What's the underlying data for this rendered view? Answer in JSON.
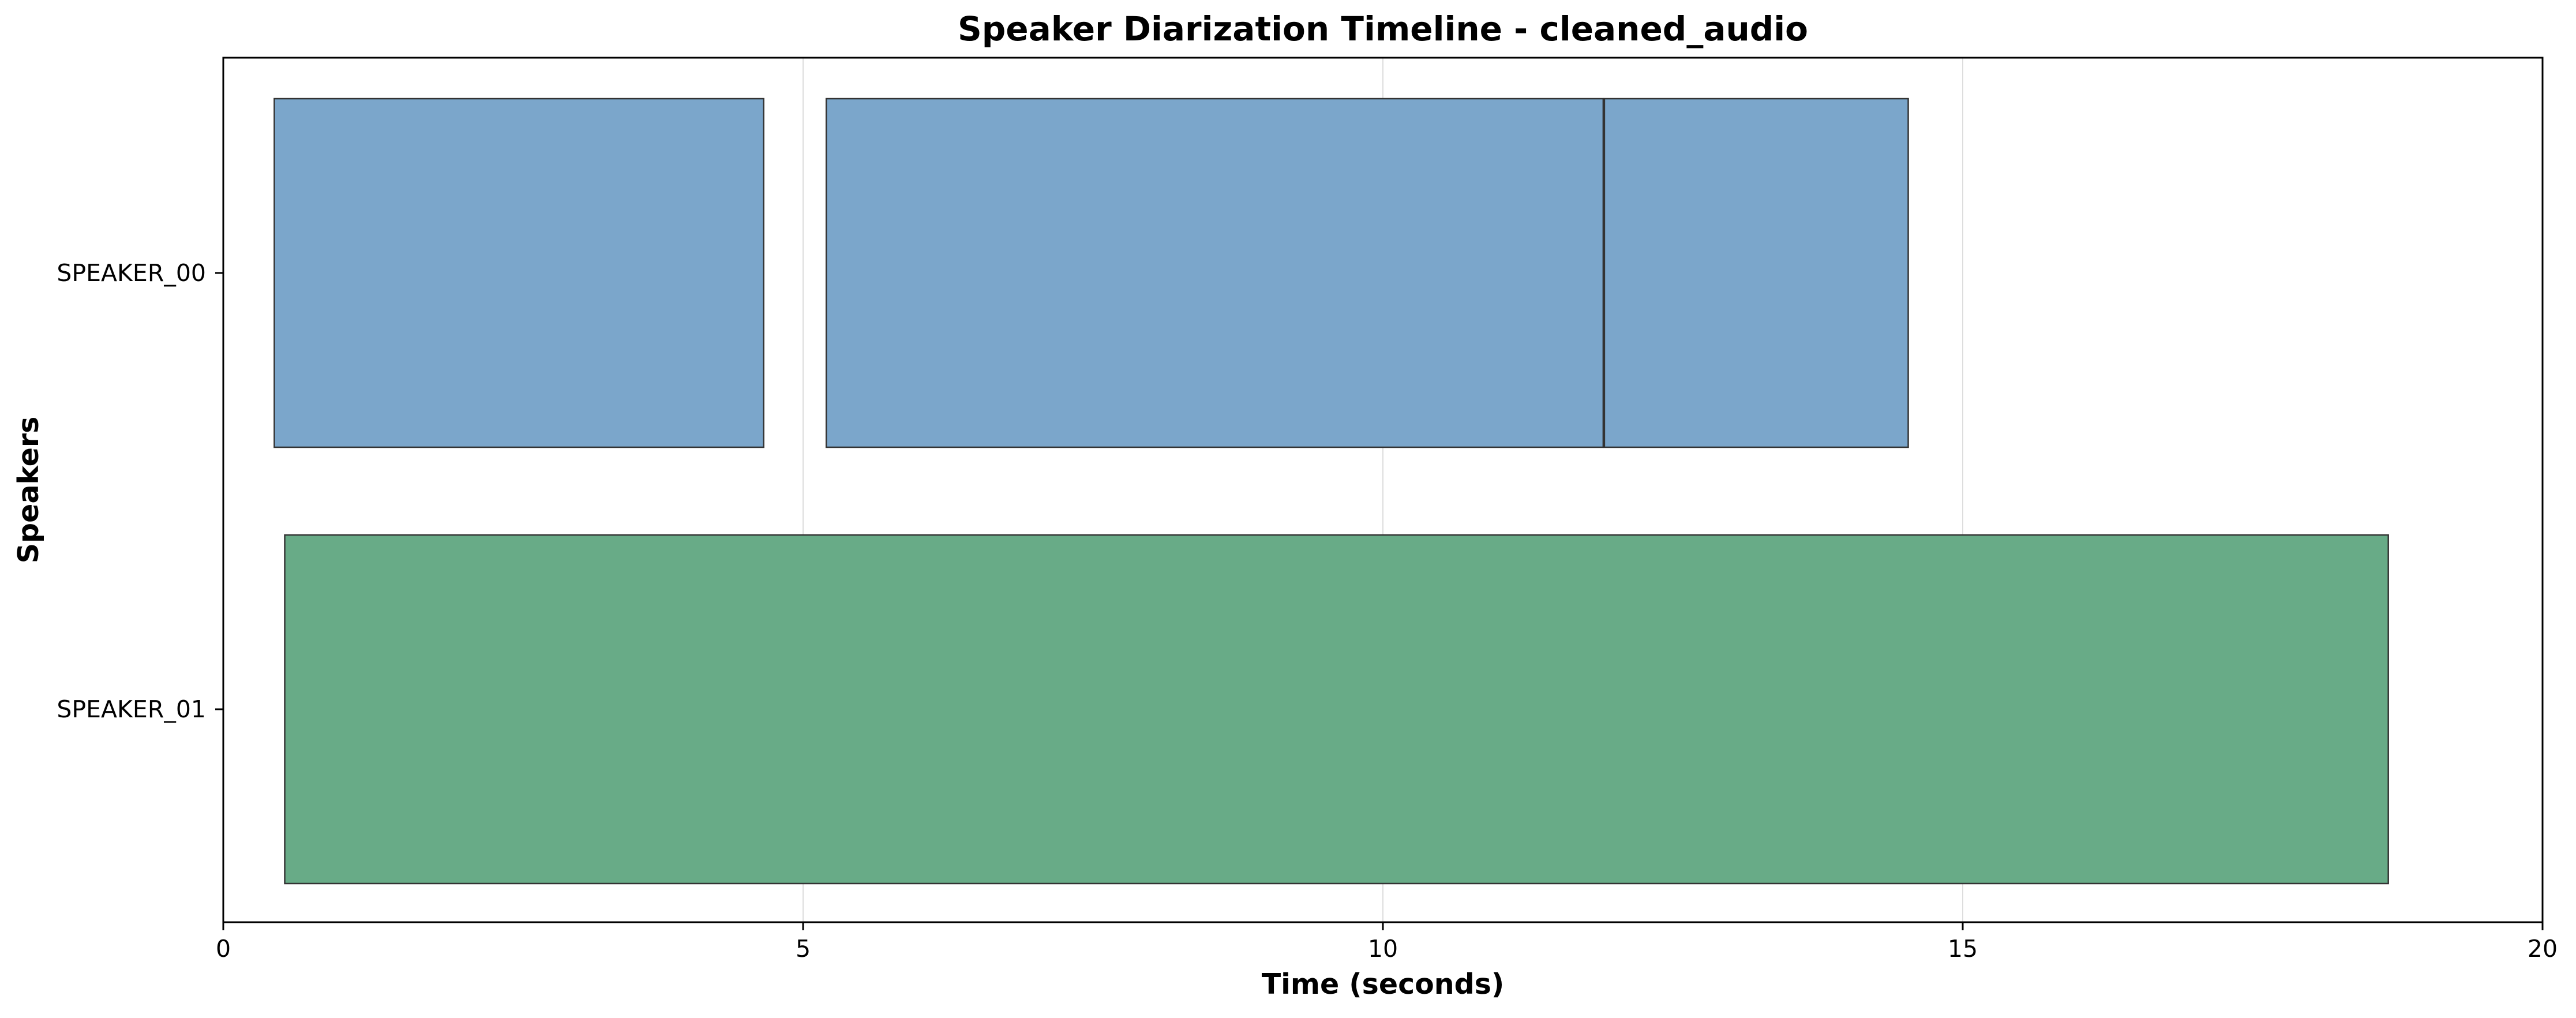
{
  "chart_data": {
    "type": "bar",
    "orientation": "horizontal-timeline",
    "title": "Speaker Diarization Timeline - cleaned_audio",
    "xlabel": "Time (seconds)",
    "ylabel": "Speakers",
    "xlim": [
      0,
      20
    ],
    "xticks": [
      0,
      5,
      10,
      15,
      20
    ],
    "grid": "x",
    "speakers": [
      "SPEAKER_00",
      "SPEAKER_01"
    ],
    "series": [
      {
        "name": "SPEAKER_00",
        "color": "#7ba6cb",
        "segments": [
          {
            "start": 0.44,
            "end": 4.66
          },
          {
            "start": 5.2,
            "end": 11.9
          },
          {
            "start": 11.91,
            "end": 14.53
          }
        ]
      },
      {
        "name": "SPEAKER_01",
        "color": "#68ab87",
        "segments": [
          {
            "start": 0.53,
            "end": 18.67
          }
        ]
      }
    ]
  }
}
